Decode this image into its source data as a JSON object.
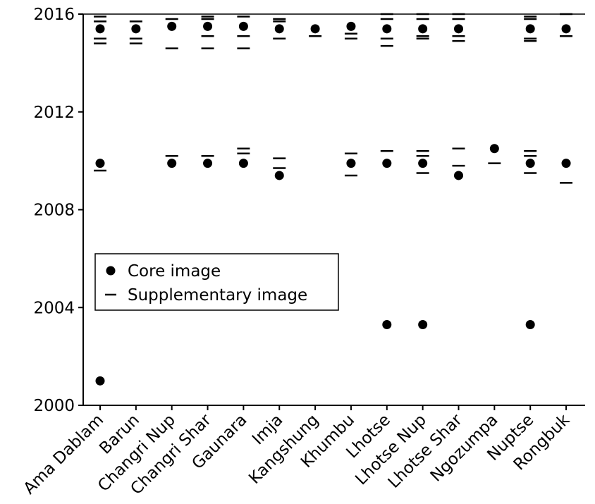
{
  "chart_data": {
    "type": "scatter",
    "categories": [
      "Ama Dablam",
      "Barun",
      "Changri Nup",
      "Changri Shar",
      "Gaunara",
      "Imja",
      "Kangshung",
      "Khumbu",
      "Lhotse",
      "Lhotse Nup",
      "Lhotse Shar",
      "Ngozumpa",
      "Nuptse",
      "Rongbuk"
    ],
    "ylim": [
      2000,
      2016
    ],
    "yticks": [
      2000,
      2004,
      2008,
      2012,
      2016
    ],
    "legend": "center-left",
    "series": [
      {
        "name": "Core image",
        "marker": "circle",
        "color": "#000000",
        "categories": [
          "Ama Dablam",
          "Ama Dablam",
          "Ama Dablam",
          "Barun",
          "Changri Nup",
          "Changri Nup",
          "Changri Shar",
          "Changri Shar",
          "Gaunara",
          "Gaunara",
          "Imja",
          "Imja",
          "Kangshung",
          "Khumbu",
          "Khumbu",
          "Lhotse",
          "Lhotse",
          "Lhotse",
          "Lhotse Nup",
          "Lhotse Nup",
          "Lhotse Nup",
          "Lhotse Shar",
          "Lhotse Shar",
          "Ngozumpa",
          "Nuptse",
          "Nuptse",
          "Nuptse",
          "Rongbuk",
          "Rongbuk"
        ],
        "values": [
          2015.4,
          2009.9,
          2001.0,
          2015.4,
          2015.5,
          2009.9,
          2015.5,
          2009.9,
          2015.5,
          2009.9,
          2015.4,
          2009.4,
          2015.4,
          2015.5,
          2009.9,
          2015.4,
          2009.9,
          2003.3,
          2015.4,
          2009.9,
          2003.3,
          2015.4,
          2009.4,
          2010.5,
          2015.4,
          2009.9,
          2003.3,
          2015.4,
          2009.9
        ]
      },
      {
        "name": "Supplementary image",
        "marker": "dash",
        "color": "#000000",
        "categories": [
          "Ama Dablam",
          "Ama Dablam",
          "Ama Dablam",
          "Ama Dablam",
          "Ama Dablam",
          "Barun",
          "Barun",
          "Barun",
          "Changri Nup",
          "Changri Nup",
          "Changri Nup",
          "Changri Shar",
          "Changri Shar",
          "Changri Shar",
          "Changri Shar",
          "Changri Shar",
          "Gaunara",
          "Gaunara",
          "Gaunara",
          "Gaunara",
          "Gaunara",
          "Imja",
          "Imja",
          "Imja",
          "Imja",
          "Imja",
          "Kangshung",
          "Khumbu",
          "Khumbu",
          "Khumbu",
          "Khumbu",
          "Lhotse",
          "Lhotse",
          "Lhotse",
          "Lhotse",
          "Lhotse",
          "Lhotse Nup",
          "Lhotse Nup",
          "Lhotse Nup",
          "Lhotse Nup",
          "Lhotse Nup",
          "Lhotse Nup",
          "Lhotse Nup",
          "Lhotse Shar",
          "Lhotse Shar",
          "Lhotse Shar",
          "Lhotse Shar",
          "Lhotse Shar",
          "Lhotse Shar",
          "Ngozumpa",
          "Nuptse",
          "Nuptse",
          "Nuptse",
          "Nuptse",
          "Nuptse",
          "Nuptse",
          "Nuptse",
          "Rongbuk",
          "Rongbuk",
          "Rongbuk"
        ],
        "values": [
          2015.9,
          2015.7,
          2015.0,
          2014.8,
          2009.6,
          2015.7,
          2015.0,
          2014.8,
          2015.8,
          2014.6,
          2010.2,
          2015.9,
          2015.8,
          2015.1,
          2014.6,
          2010.2,
          2015.9,
          2015.1,
          2014.6,
          2010.5,
          2010.3,
          2015.8,
          2015.7,
          2015.0,
          2010.1,
          2009.7,
          2015.1,
          2015.2,
          2015.0,
          2010.3,
          2009.4,
          2016.0,
          2015.8,
          2015.0,
          2014.7,
          2010.4,
          2016.0,
          2015.8,
          2015.1,
          2015.0,
          2010.4,
          2010.2,
          2009.5,
          2016.0,
          2015.8,
          2015.1,
          2014.9,
          2010.5,
          2009.8,
          2009.9,
          2015.9,
          2015.8,
          2015.0,
          2014.9,
          2010.4,
          2010.2,
          2009.5,
          2016.0,
          2015.1,
          2009.1
        ]
      }
    ]
  }
}
